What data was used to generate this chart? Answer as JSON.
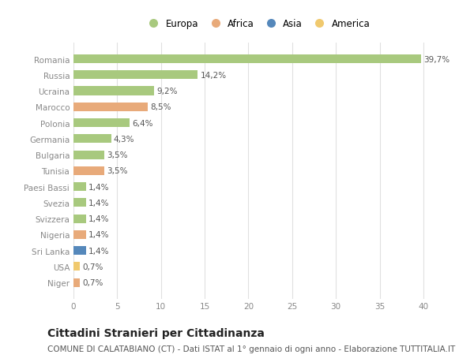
{
  "countries": [
    "Romania",
    "Russia",
    "Ucraina",
    "Marocco",
    "Polonia",
    "Germania",
    "Bulgaria",
    "Tunisia",
    "Paesi Bassi",
    "Svezia",
    "Svizzera",
    "Nigeria",
    "Sri Lanka",
    "USA",
    "Niger"
  ],
  "values": [
    39.7,
    14.2,
    9.2,
    8.5,
    6.4,
    4.3,
    3.5,
    3.5,
    1.4,
    1.4,
    1.4,
    1.4,
    1.4,
    0.7,
    0.7
  ],
  "labels": [
    "39,7%",
    "14,2%",
    "9,2%",
    "8,5%",
    "6,4%",
    "4,3%",
    "3,5%",
    "3,5%",
    "1,4%",
    "1,4%",
    "1,4%",
    "1,4%",
    "1,4%",
    "0,7%",
    "0,7%"
  ],
  "continents": [
    "Europa",
    "Europa",
    "Europa",
    "Africa",
    "Europa",
    "Europa",
    "Europa",
    "Africa",
    "Europa",
    "Europa",
    "Europa",
    "Africa",
    "Asia",
    "America",
    "Africa"
  ],
  "continent_colors": {
    "Europa": "#a8c97e",
    "Africa": "#e8aa7a",
    "Asia": "#5588bb",
    "America": "#f0c96e"
  },
  "legend_entries": [
    "Europa",
    "Africa",
    "Asia",
    "America"
  ],
  "bg_color": "#ffffff",
  "plot_bg_color": "#ffffff",
  "title": "Cittadini Stranieri per Cittadinanza",
  "subtitle": "COMUNE DI CALATABIANO (CT) - Dati ISTAT al 1° gennaio di ogni anno - Elaborazione TUTTITALIA.IT",
  "xlim": [
    0,
    42
  ],
  "xticks": [
    0,
    5,
    10,
    15,
    20,
    25,
    30,
    35,
    40
  ],
  "bar_height": 0.55,
  "grid_color": "#e0e0e0",
  "title_fontsize": 10,
  "subtitle_fontsize": 7.5,
  "tick_fontsize": 7.5,
  "label_fontsize": 7.5,
  "legend_fontsize": 8.5
}
